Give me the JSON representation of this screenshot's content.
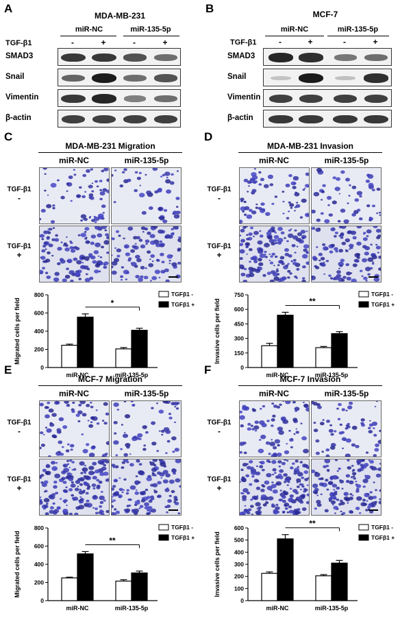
{
  "panelA": {
    "letter": "A",
    "title": "MDA-MB-231",
    "groups": [
      "miR-NC",
      "miR-135-5p"
    ],
    "treat_label": "TGF-β1",
    "signs": [
      "-",
      "+",
      "-",
      "+"
    ],
    "rows": [
      {
        "label": "SMAD3",
        "bands": [
          0.85,
          0.85,
          0.7,
          0.55
        ]
      },
      {
        "label": "Snail",
        "bands": [
          0.6,
          1.0,
          0.55,
          0.7
        ]
      },
      {
        "label": "Vimentin",
        "bands": [
          0.85,
          0.95,
          0.45,
          0.55
        ]
      },
      {
        "label": "β-actin",
        "bands": [
          0.8,
          0.8,
          0.8,
          0.8
        ]
      }
    ]
  },
  "panelB": {
    "letter": "B",
    "title": "MCF-7",
    "groups": [
      "miR-NC",
      "miR-135-5p"
    ],
    "treat_label": "TGF-β1",
    "signs": [
      "-",
      "+",
      "-",
      "+"
    ],
    "rows": [
      {
        "label": "SMAD3",
        "bands": [
          0.95,
          0.9,
          0.5,
          0.55
        ]
      },
      {
        "label": "Snail",
        "bands": [
          0.08,
          1.0,
          0.1,
          0.9
        ]
      },
      {
        "label": "Vimentin",
        "bands": [
          0.8,
          0.8,
          0.8,
          0.8
        ]
      },
      {
        "label": "β-actin",
        "bands": [
          0.85,
          0.85,
          0.85,
          0.85
        ]
      }
    ]
  },
  "assays": [
    {
      "letter": "C",
      "title": "MDA-MB-231 Migration",
      "cols": [
        "miR-NC",
        "miR-135-5p"
      ],
      "row_label": "TGF-β1",
      "row_signs": [
        "-",
        "+"
      ],
      "densities": [
        60,
        45,
        120,
        100
      ]
    },
    {
      "letter": "D",
      "title": "MDA-MB-231 Invasion",
      "cols": [
        "miR-NC",
        "miR-135-5p"
      ],
      "row_label": "TGF-β1",
      "row_signs": [
        "-",
        "+"
      ],
      "densities": [
        70,
        50,
        140,
        110
      ]
    },
    {
      "letter": "E",
      "title": "MCF-7 Migration",
      "cols": [
        "miR-NC",
        "miR-135-5p"
      ],
      "row_label": "TGF-β1",
      "row_signs": [
        "-",
        "+"
      ],
      "densities": [
        70,
        55,
        160,
        130
      ]
    },
    {
      "letter": "F",
      "title": "MCF-7 Invasion",
      "cols": [
        "miR-NC",
        "miR-135-5p"
      ],
      "row_label": "TGF-β1",
      "row_signs": [
        "-",
        "+"
      ],
      "densities": [
        75,
        60,
        170,
        140
      ]
    }
  ],
  "chart_data": [
    {
      "type": "bar",
      "panel": "C",
      "categories": [
        "miR-NC",
        "miR-135-5p"
      ],
      "series": [
        {
          "name": "TGFβ1 -",
          "values": [
            245,
            205
          ],
          "errors": [
            12,
            15
          ]
        },
        {
          "name": "TGFβ1 +",
          "values": [
            555,
            410
          ],
          "errors": [
            35,
            22
          ]
        }
      ],
      "ylabel": "Migrated cells per field",
      "ylim": [
        0,
        800
      ],
      "yticks": [
        0,
        200,
        400,
        600,
        800
      ],
      "significance": "*",
      "legend": "top-right"
    },
    {
      "type": "bar",
      "panel": "D",
      "categories": [
        "miR-NC",
        "miR-135-5p"
      ],
      "series": [
        {
          "name": "TGFβ1 -",
          "values": [
            225,
            205
          ],
          "errors": [
            25,
            12
          ]
        },
        {
          "name": "TGFβ1 +",
          "values": [
            540,
            350
          ],
          "errors": [
            30,
            20
          ]
        }
      ],
      "ylabel": "Invasive cells per field",
      "ylim": [
        0,
        750
      ],
      "yticks": [
        0,
        150,
        300,
        450,
        600,
        750
      ],
      "significance": "**",
      "legend": "top-right"
    },
    {
      "type": "bar",
      "panel": "E",
      "categories": [
        "miR-NC",
        "miR-135-5p"
      ],
      "series": [
        {
          "name": "TGFβ1 -",
          "values": [
            250,
            215
          ],
          "errors": [
            8,
            15
          ]
        },
        {
          "name": "TGFβ1 +",
          "values": [
            515,
            305
          ],
          "errors": [
            25,
            20
          ]
        }
      ],
      "ylabel": "Migrated cells per field",
      "ylim": [
        0,
        800
      ],
      "yticks": [
        0,
        200,
        400,
        600,
        800
      ],
      "significance": "**",
      "legend": "top-right"
    },
    {
      "type": "bar",
      "panel": "F",
      "categories": [
        "miR-NC",
        "miR-135-5p"
      ],
      "series": [
        {
          "name": "TGFβ1 -",
          "values": [
            225,
            205
          ],
          "errors": [
            12,
            10
          ]
        },
        {
          "name": "TGFβ1 +",
          "values": [
            510,
            310
          ],
          "errors": [
            35,
            22
          ]
        }
      ],
      "ylabel": "Invasive cells per field",
      "ylim": [
        0,
        600
      ],
      "yticks": [
        0,
        100,
        200,
        300,
        400,
        500,
        600
      ],
      "significance": "**",
      "legend": "top-right"
    }
  ]
}
